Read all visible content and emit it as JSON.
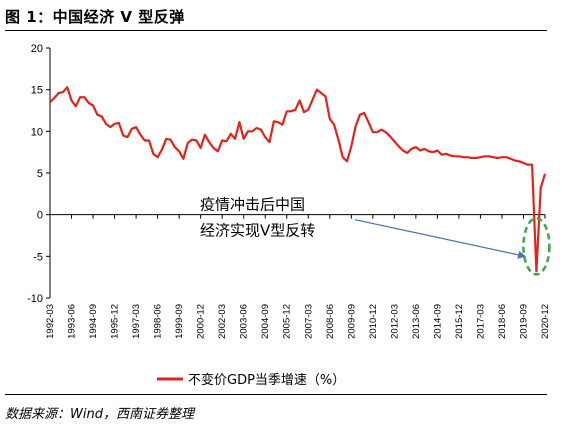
{
  "figure": {
    "title": "图 1：中国经济 V 型反弹",
    "source": "数据来源：Wind，西南证券整理"
  },
  "chart_data": {
    "type": "line",
    "ylim": [
      -10,
      20
    ],
    "yticks": [
      -10,
      -5,
      0,
      5,
      10,
      15,
      20
    ],
    "xlim": [
      "1992-03",
      "2020-12"
    ],
    "xtick_labels": [
      "1992-03",
      "1993-06",
      "1994-09",
      "1995-12",
      "1997-03",
      "1998-06",
      "1999-09",
      "2000-12",
      "2002-03",
      "2003-06",
      "2004-09",
      "2005-12",
      "2007-03",
      "2008-06",
      "2009-09",
      "2010-12",
      "2012-03",
      "2013-06",
      "2014-09",
      "2015-12",
      "2017-03",
      "2018-06",
      "2019-09",
      "2020-12"
    ],
    "grid": false,
    "legend_position": "bottom",
    "series": [
      {
        "name": "不变价GDP当季增速（%）",
        "color": "#e2231a",
        "x": [
          "1992-03",
          "1992-06",
          "1992-09",
          "1992-12",
          "1993-03",
          "1993-06",
          "1993-09",
          "1993-12",
          "1994-03",
          "1994-06",
          "1994-09",
          "1994-12",
          "1995-03",
          "1995-06",
          "1995-09",
          "1995-12",
          "1996-03",
          "1996-06",
          "1996-09",
          "1996-12",
          "1997-03",
          "1997-06",
          "1997-09",
          "1997-12",
          "1998-03",
          "1998-06",
          "1998-09",
          "1998-12",
          "1999-03",
          "1999-06",
          "1999-09",
          "1999-12",
          "2000-03",
          "2000-06",
          "2000-09",
          "2000-12",
          "2001-03",
          "2001-06",
          "2001-09",
          "2001-12",
          "2002-03",
          "2002-06",
          "2002-09",
          "2002-12",
          "2003-03",
          "2003-06",
          "2003-09",
          "2003-12",
          "2004-03",
          "2004-06",
          "2004-09",
          "2004-12",
          "2005-03",
          "2005-06",
          "2005-09",
          "2005-12",
          "2006-03",
          "2006-06",
          "2006-09",
          "2006-12",
          "2007-03",
          "2007-06",
          "2007-09",
          "2007-12",
          "2008-03",
          "2008-06",
          "2008-09",
          "2008-12",
          "2009-03",
          "2009-06",
          "2009-09",
          "2009-12",
          "2010-03",
          "2010-06",
          "2010-09",
          "2010-12",
          "2011-03",
          "2011-06",
          "2011-09",
          "2011-12",
          "2012-03",
          "2012-06",
          "2012-09",
          "2012-12",
          "2013-03",
          "2013-06",
          "2013-09",
          "2013-12",
          "2014-03",
          "2014-06",
          "2014-09",
          "2014-12",
          "2015-03",
          "2015-06",
          "2015-09",
          "2015-12",
          "2016-03",
          "2016-06",
          "2016-09",
          "2016-12",
          "2017-03",
          "2017-06",
          "2017-09",
          "2017-12",
          "2018-03",
          "2018-06",
          "2018-09",
          "2018-12",
          "2019-03",
          "2019-06",
          "2019-09",
          "2019-12",
          "2020-03",
          "2020-06",
          "2020-09",
          "2020-12"
        ],
        "values": [
          13.5,
          14.0,
          14.6,
          14.7,
          15.3,
          13.7,
          13.0,
          14.1,
          14.1,
          13.4,
          13.1,
          12.0,
          11.8,
          10.9,
          10.5,
          10.9,
          11.0,
          9.5,
          9.3,
          10.3,
          10.5,
          9.6,
          8.9,
          8.9,
          7.3,
          6.9,
          7.8,
          9.1,
          9.0,
          8.1,
          7.6,
          6.7,
          8.6,
          9.0,
          8.9,
          8.0,
          9.6,
          8.7,
          8.0,
          7.6,
          8.9,
          8.8,
          9.7,
          9.1,
          11.1,
          9.1,
          10.0,
          10.0,
          10.4,
          10.2,
          9.3,
          8.7,
          11.2,
          11.1,
          10.8,
          12.4,
          12.4,
          12.6,
          13.7,
          12.3,
          12.6,
          13.8,
          15.0,
          14.6,
          14.2,
          11.5,
          10.8,
          9.0,
          6.9,
          6.4,
          8.2,
          10.6,
          12.0,
          12.2,
          11.1,
          9.9,
          9.9,
          10.2,
          9.9,
          9.4,
          8.8,
          8.2,
          7.7,
          7.4,
          7.9,
          8.1,
          7.7,
          7.9,
          7.6,
          7.5,
          7.7,
          7.2,
          7.3,
          7.1,
          7.0,
          7.0,
          6.9,
          6.9,
          6.8,
          6.8,
          6.9,
          7.0,
          7.0,
          6.9,
          6.8,
          6.9,
          6.9,
          6.7,
          6.5,
          6.4,
          6.2,
          6.0,
          6.0,
          -6.8,
          3.2,
          4.9
        ]
      }
    ],
    "annotations": [
      {
        "lines": [
          "疫情冲击后中国",
          "经济实现V型反转"
        ],
        "arrow_to": {
          "x": "2020-03",
          "y": -5.0
        }
      }
    ],
    "highlight": {
      "type": "dashed-ellipse",
      "color": "#3aa64a",
      "center": {
        "x": "2020-06",
        "y": -3.8
      }
    }
  }
}
